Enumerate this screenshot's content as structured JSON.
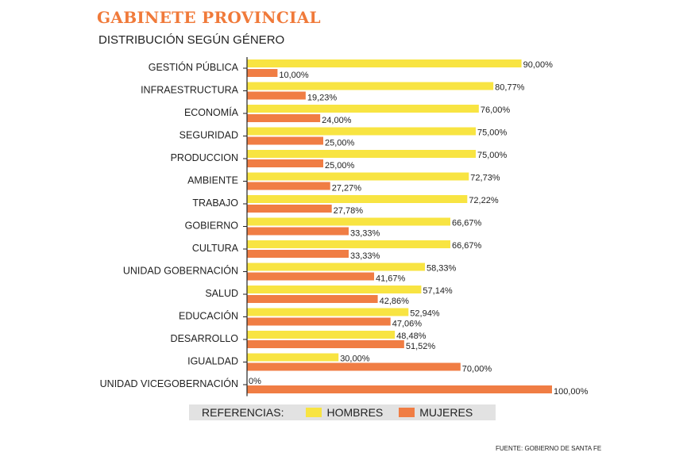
{
  "header": {
    "title": "GABINETE PROVINCIAL",
    "subtitle": "DISTRIBUCIÓN SEGÚN GÉNERO"
  },
  "legend": {
    "label": "REFERENCIAS:",
    "hombres": "HOMBRES",
    "mujeres": "MUJERES"
  },
  "source": "FUENTE: GOBIERNO DE SANTA FE",
  "colors": {
    "hombres": "#f8e442",
    "mujeres": "#f07d44",
    "title": "#f07a3a"
  },
  "chart_data": {
    "type": "bar",
    "orientation": "horizontal",
    "title": "GABINETE PROVINCIAL",
    "subtitle": "DISTRIBUCIÓN SEGÚN GÉNERO",
    "xlim": [
      0,
      100
    ],
    "grid": false,
    "legend_position": "bottom",
    "categories": [
      "GESTIÓN PÚBLICA",
      "INFRAESTRUCTURA",
      "ECONOMÍA",
      "SEGURIDAD",
      "PRODUCCION",
      "AMBIENTE",
      "TRABAJO",
      "GOBIERNO",
      "CULTURA",
      "UNIDAD GOBERNACIÓN",
      "SALUD",
      "EDUCACIÓN",
      "DESARROLLO",
      "IGUALDAD",
      "UNIDAD VICEGOBERNACIÓN"
    ],
    "series": [
      {
        "name": "HOMBRES",
        "values": [
          90.0,
          80.77,
          76.0,
          75.0,
          75.0,
          72.73,
          72.22,
          66.67,
          66.67,
          58.33,
          57.14,
          52.94,
          48.48,
          30.0,
          0
        ],
        "labels": [
          "90,00%",
          "80,77%",
          "76,00%",
          "75,00%",
          "75,00%",
          "72,73%",
          "72,22%",
          "66,67%",
          "66,67%",
          "58,33%",
          "57,14%",
          "52,94%",
          "48,48%",
          "30,00%",
          "0%"
        ]
      },
      {
        "name": "MUJERES",
        "values": [
          10.0,
          19.23,
          24.0,
          25.0,
          25.0,
          27.27,
          27.78,
          33.33,
          33.33,
          41.67,
          42.86,
          47.06,
          51.52,
          70.0,
          100.0
        ],
        "labels": [
          "10,00%",
          "19,23%",
          "24,00%",
          "25,00%",
          "25,00%",
          "27,27%",
          "27,78%",
          "33,33%",
          "33,33%",
          "41,67%",
          "42,86%",
          "47,06%",
          "51,52%",
          "70,00%",
          "100,00%"
        ]
      }
    ]
  }
}
